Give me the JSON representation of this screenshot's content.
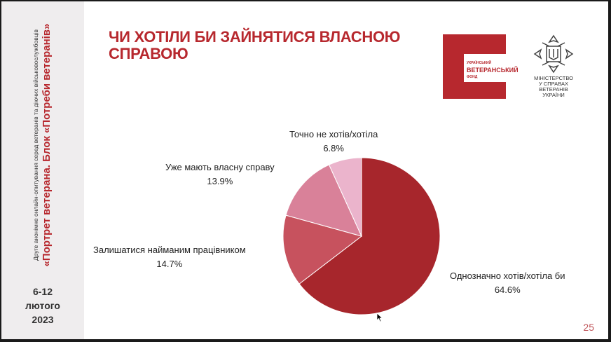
{
  "sidebar": {
    "survey_line": "Друге анонімне онлайн-опитування серед ветеранів та діючих військовослужбовців",
    "block_line": "«Портрет ветерана. Блок «Потреби ветеранів»",
    "dates": [
      "6-12",
      "лютого",
      "2023"
    ]
  },
  "title": {
    "line1": "ЧИ ХОТІЛИ БИ ЗАЙНЯТИСЯ ВЛАСНОЮ",
    "line2": "СПРАВОЮ"
  },
  "logos": {
    "fund": {
      "l1": "УКРАЇНСЬКИЙ",
      "l2": "ВЕТЕРАНСЬКИЙ",
      "l3": "ФОНД"
    },
    "ministry": [
      "МІНІСТЕРСТВО",
      "У СПРАВАХ",
      "ВЕТЕРАНІВ",
      "УКРАЇНИ"
    ]
  },
  "page_number": "25",
  "chart_data": {
    "type": "pie",
    "start_angle_deg": 0,
    "direction": "clockwise",
    "slices": [
      {
        "label": "Однозначно хотів/хотіла би",
        "value": 64.6,
        "value_label": "64.6%",
        "color": "#a7262c"
      },
      {
        "label": "Залишатися найманим працівником",
        "value": 14.7,
        "value_label": "14.7%",
        "color": "#c7525e"
      },
      {
        "label": "Уже мають власну справу",
        "value": 13.9,
        "value_label": "13.9%",
        "color": "#d98199"
      },
      {
        "label": "Точно не хотів/хотіла",
        "value": 6.8,
        "value_label": "6.8%",
        "color": "#ebb4cc"
      }
    ]
  }
}
